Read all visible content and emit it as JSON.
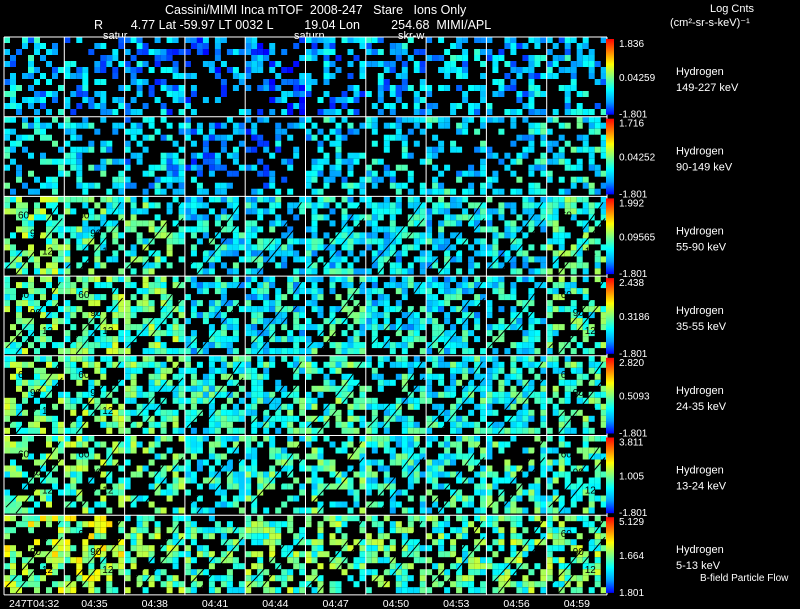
{
  "header": {
    "title": "Cassini/MIMI Inca mTOF  2008-247   Stare   Ions Only",
    "line2": "R        4.77 Lat -59.97 LT 0032 L         19.04 Lon         254.68  MIMI/APL",
    "units_line1": "Log Cnts",
    "units_line2": "(cm²-sr-s-keV)⁻¹",
    "annotations": [
      "satur",
      "saturn",
      "skr-w"
    ]
  },
  "footer": {
    "bfield_label": "B-field Particle Flow"
  },
  "chart_data": {
    "type": "heatmap",
    "title": "Cassini/MIMI Inca mTOF  2008-247   Stare   Ions Only",
    "x": [
      "247T04:32",
      "04:35",
      "04:38",
      "04:41",
      "04:44",
      "04:47",
      "04:50",
      "04:53",
      "04:56",
      "04:59"
    ],
    "rows": [
      {
        "species": "Hydrogen",
        "energy": "149-227 keV",
        "cb_max": "1.836",
        "cb_mid": "0.04259",
        "cb_min": "-1.801",
        "intensity": [
          0.25,
          0.22,
          0.2,
          0.18,
          0.15,
          0.2,
          0.22,
          0.25,
          0.22,
          0.25
        ]
      },
      {
        "species": "Hydrogen",
        "energy": "90-149 keV",
        "cb_max": "1.716",
        "cb_mid": "0.04252",
        "cb_min": "-1.801",
        "intensity": [
          0.3,
          0.3,
          0.25,
          0.2,
          0.2,
          0.28,
          0.28,
          0.3,
          0.3,
          0.32
        ]
      },
      {
        "species": "Hydrogen",
        "energy": "55-90 keV",
        "cb_max": "1.992",
        "cb_mid": "0.09565",
        "cb_min": "-1.801",
        "intensity": [
          0.45,
          0.4,
          0.4,
          0.3,
          0.3,
          0.3,
          0.3,
          0.3,
          0.3,
          0.4
        ]
      },
      {
        "species": "Hydrogen",
        "energy": "35-55 keV",
        "cb_max": "2.438",
        "cb_mid": "0.3186",
        "cb_min": "-1.801",
        "intensity": [
          0.45,
          0.45,
          0.45,
          0.3,
          0.3,
          0.35,
          0.3,
          0.3,
          0.3,
          0.4
        ]
      },
      {
        "species": "Hydrogen",
        "energy": "24-35 keV",
        "cb_max": "2.820",
        "cb_mid": "0.5093",
        "cb_min": "-1.801",
        "intensity": [
          0.45,
          0.45,
          0.42,
          0.35,
          0.35,
          0.4,
          0.35,
          0.35,
          0.35,
          0.4
        ]
      },
      {
        "species": "Hydrogen",
        "energy": "13-24 keV",
        "cb_max": "3.811",
        "cb_mid": "1.005",
        "cb_min": "-1.801",
        "intensity": [
          0.45,
          0.45,
          0.42,
          0.35,
          0.38,
          0.4,
          0.35,
          0.35,
          0.38,
          0.4
        ]
      },
      {
        "species": "Hydrogen",
        "energy": "5-13 keV",
        "cb_max": "5.129",
        "cb_mid": "1.664",
        "cb_min": "1.801",
        "intensity": [
          0.55,
          0.55,
          0.45,
          0.4,
          0.45,
          0.45,
          0.42,
          0.42,
          0.45,
          0.45
        ]
      }
    ],
    "contour_labels": [
      "60",
      "90",
      "12"
    ],
    "colormap": [
      "#0000ff",
      "#00a0ff",
      "#00ffff",
      "#80ff80",
      "#ffff00",
      "#ff8000",
      "#ff0000"
    ],
    "grid": true,
    "legend_position": "right"
  }
}
